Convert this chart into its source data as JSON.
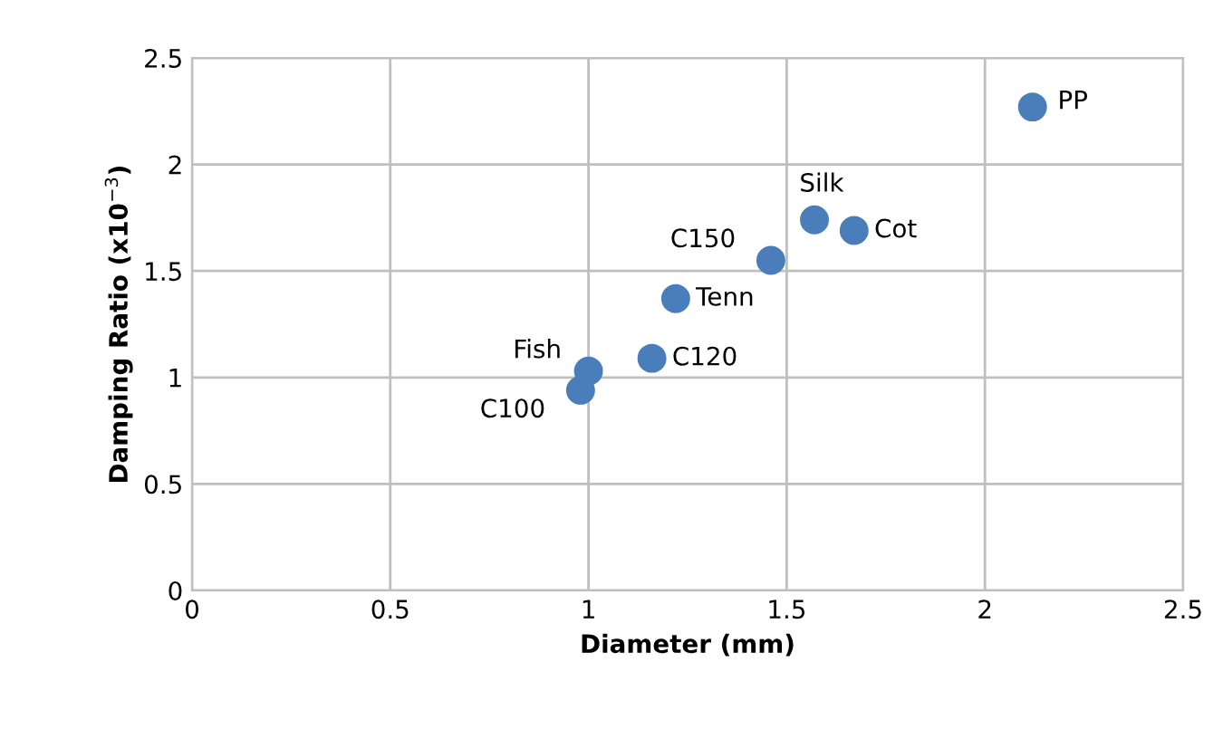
{
  "chart_data": {
    "type": "scatter",
    "xlabel": "Diameter (mm)",
    "ylabel": "Damping Ratio (x10$^{−3}$)",
    "x": [
      0.98,
      1.0,
      1.16,
      1.22,
      1.46,
      1.57,
      1.67,
      2.12
    ],
    "series": [
      {
        "color": "#4a7ebb",
        "values": [
          0.94,
          1.03,
          1.09,
          1.37,
          1.55,
          1.74,
          1.69,
          2.27
        ]
      }
    ],
    "annotations": [
      {
        "text": "C100",
        "x": 0.98,
        "y": 0.94
      },
      {
        "text": "Fish",
        "x": 1.0,
        "y": 1.03
      },
      {
        "text": "C120",
        "x": 1.16,
        "y": 1.09
      },
      {
        "text": "Tenn",
        "x": 1.22,
        "y": 1.37
      },
      {
        "text": "C150",
        "x": 1.46,
        "y": 1.55
      },
      {
        "text": "Silk",
        "x": 1.57,
        "y": 1.74
      },
      {
        "text": "Cot",
        "x": 1.67,
        "y": 1.69
      },
      {
        "text": "PP",
        "x": 2.12,
        "y": 2.27
      }
    ],
    "xlim": [
      0,
      2.5
    ],
    "xticks": [
      0,
      0.5,
      1,
      1.5,
      2,
      2.5
    ],
    "ylim": [
      0,
      2.5
    ],
    "yticks": [
      0,
      0.5,
      1,
      1.5,
      2,
      2.5
    ],
    "grid": true,
    "marker": "circle",
    "legend": false
  }
}
